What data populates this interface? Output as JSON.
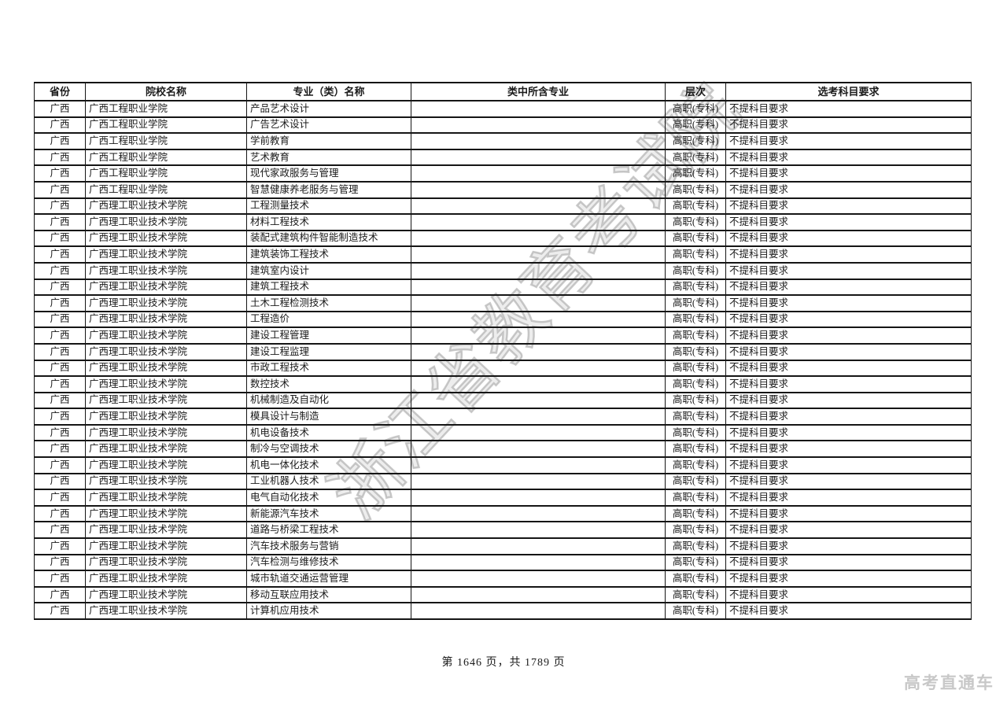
{
  "watermark": {
    "text": "浙江省教育考试院",
    "color": "#a8a8a8"
  },
  "table": {
    "columns": [
      {
        "key": "province",
        "label": "省份"
      },
      {
        "key": "college",
        "label": "院校名称"
      },
      {
        "key": "major",
        "label": "专业（类）名称"
      },
      {
        "key": "included_majors",
        "label": "类中所含专业"
      },
      {
        "key": "level",
        "label": "层次"
      },
      {
        "key": "subject_requirement",
        "label": "选考科目要求"
      }
    ],
    "rows": [
      [
        "广西",
        "广西工程职业学院",
        "产品艺术设计",
        "",
        "高职(专科)",
        "不提科目要求"
      ],
      [
        "广西",
        "广西工程职业学院",
        "广告艺术设计",
        "",
        "高职(专科)",
        "不提科目要求"
      ],
      [
        "广西",
        "广西工程职业学院",
        "学前教育",
        "",
        "高职(专科)",
        "不提科目要求"
      ],
      [
        "广西",
        "广西工程职业学院",
        "艺术教育",
        "",
        "高职(专科)",
        "不提科目要求"
      ],
      [
        "广西",
        "广西工程职业学院",
        "现代家政服务与管理",
        "",
        "高职(专科)",
        "不提科目要求"
      ],
      [
        "广西",
        "广西工程职业学院",
        "智慧健康养老服务与管理",
        "",
        "高职(专科)",
        "不提科目要求"
      ],
      [
        "广西",
        "广西理工职业技术学院",
        "工程测量技术",
        "",
        "高职(专科)",
        "不提科目要求"
      ],
      [
        "广西",
        "广西理工职业技术学院",
        "材料工程技术",
        "",
        "高职(专科)",
        "不提科目要求"
      ],
      [
        "广西",
        "广西理工职业技术学院",
        "装配式建筑构件智能制造技术",
        "",
        "高职(专科)",
        "不提科目要求"
      ],
      [
        "广西",
        "广西理工职业技术学院",
        "建筑装饰工程技术",
        "",
        "高职(专科)",
        "不提科目要求"
      ],
      [
        "广西",
        "广西理工职业技术学院",
        "建筑室内设计",
        "",
        "高职(专科)",
        "不提科目要求"
      ],
      [
        "广西",
        "广西理工职业技术学院",
        "建筑工程技术",
        "",
        "高职(专科)",
        "不提科目要求"
      ],
      [
        "广西",
        "广西理工职业技术学院",
        "土木工程检测技术",
        "",
        "高职(专科)",
        "不提科目要求"
      ],
      [
        "广西",
        "广西理工职业技术学院",
        "工程造价",
        "",
        "高职(专科)",
        "不提科目要求"
      ],
      [
        "广西",
        "广西理工职业技术学院",
        "建设工程管理",
        "",
        "高职(专科)",
        "不提科目要求"
      ],
      [
        "广西",
        "广西理工职业技术学院",
        "建设工程监理",
        "",
        "高职(专科)",
        "不提科目要求"
      ],
      [
        "广西",
        "广西理工职业技术学院",
        "市政工程技术",
        "",
        "高职(专科)",
        "不提科目要求"
      ],
      [
        "广西",
        "广西理工职业技术学院",
        "数控技术",
        "",
        "高职(专科)",
        "不提科目要求"
      ],
      [
        "广西",
        "广西理工职业技术学院",
        "机械制造及自动化",
        "",
        "高职(专科)",
        "不提科目要求"
      ],
      [
        "广西",
        "广西理工职业技术学院",
        "模具设计与制造",
        "",
        "高职(专科)",
        "不提科目要求"
      ],
      [
        "广西",
        "广西理工职业技术学院",
        "机电设备技术",
        "",
        "高职(专科)",
        "不提科目要求"
      ],
      [
        "广西",
        "广西理工职业技术学院",
        "制冷与空调技术",
        "",
        "高职(专科)",
        "不提科目要求"
      ],
      [
        "广西",
        "广西理工职业技术学院",
        "机电一体化技术",
        "",
        "高职(专科)",
        "不提科目要求"
      ],
      [
        "广西",
        "广西理工职业技术学院",
        "工业机器人技术",
        "",
        "高职(专科)",
        "不提科目要求"
      ],
      [
        "广西",
        "广西理工职业技术学院",
        "电气自动化技术",
        "",
        "高职(专科)",
        "不提科目要求"
      ],
      [
        "广西",
        "广西理工职业技术学院",
        "新能源汽车技术",
        "",
        "高职(专科)",
        "不提科目要求"
      ],
      [
        "广西",
        "广西理工职业技术学院",
        "道路与桥梁工程技术",
        "",
        "高职(专科)",
        "不提科目要求"
      ],
      [
        "广西",
        "广西理工职业技术学院",
        "汽车技术服务与营销",
        "",
        "高职(专科)",
        "不提科目要求"
      ],
      [
        "广西",
        "广西理工职业技术学院",
        "汽车检测与维修技术",
        "",
        "高职(专科)",
        "不提科目要求"
      ],
      [
        "广西",
        "广西理工职业技术学院",
        "城市轨道交通运营管理",
        "",
        "高职(专科)",
        "不提科目要求"
      ],
      [
        "广西",
        "广西理工职业技术学院",
        "移动互联应用技术",
        "",
        "高职(专科)",
        "不提科目要求"
      ],
      [
        "广西",
        "广西理工职业技术学院",
        "计算机应用技术",
        "",
        "高职(专科)",
        "不提科目要求"
      ]
    ]
  },
  "footer": {
    "page_info": "第 1646 页，共 1789 页"
  },
  "brand": {
    "label": "高考直通车",
    "color": "#c8c8c8"
  }
}
